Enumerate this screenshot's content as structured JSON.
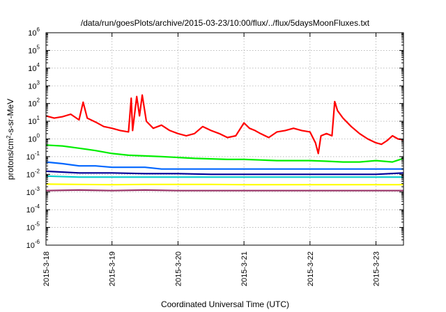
{
  "chart_data": {
    "type": "line",
    "title": "/data/run/goesPlots/archive/2015-03-23/10:00/flux/../flux/5daysMoonFluxes.txt",
    "xlabel": "Coordinated Universal Time (UTC)",
    "ylabel": {
      "before": "protons/cm",
      "sup": "2",
      "after": "-s-sr-MeV"
    },
    "y_scale": "log",
    "ylim": [
      1e-06,
      1000000.0
    ],
    "y_ticks": [
      {
        "base": "10",
        "exp": "-6"
      },
      {
        "base": "10",
        "exp": "-5"
      },
      {
        "base": "10",
        "exp": "-4"
      },
      {
        "base": "10",
        "exp": "-3"
      },
      {
        "base": "10",
        "exp": "-2"
      },
      {
        "base": "10",
        "exp": "-1"
      },
      {
        "base": "10",
        "exp": "0"
      },
      {
        "base": "10",
        "exp": "1"
      },
      {
        "base": "10",
        "exp": "2"
      },
      {
        "base": "10",
        "exp": "3"
      },
      {
        "base": "10",
        "exp": "4"
      },
      {
        "base": "10",
        "exp": "5"
      },
      {
        "base": "10",
        "exp": "6"
      }
    ],
    "x_ticks": [
      "2015-3-18",
      "2015-3-19",
      "2015-3-20",
      "2015-3-21",
      "2015-3-22",
      "2015-3-23"
    ],
    "xlim": [
      "2015-03-18T00:00",
      "2015-03-23T10:00"
    ],
    "grid": true,
    "series": [
      {
        "color": "#ff0000",
        "points": [
          [
            "2015-03-18T00:00",
            20
          ],
          [
            "2015-03-18T03:00",
            15
          ],
          [
            "2015-03-18T06:00",
            18
          ],
          [
            "2015-03-18T09:00",
            25
          ],
          [
            "2015-03-18T12:00",
            12
          ],
          [
            "2015-03-18T13:30",
            120
          ],
          [
            "2015-03-18T15:00",
            15
          ],
          [
            "2015-03-18T18:00",
            9
          ],
          [
            "2015-03-18T21:00",
            5
          ],
          [
            "2015-03-19T00:00",
            4
          ],
          [
            "2015-03-19T03:00",
            3
          ],
          [
            "2015-03-19T06:00",
            2.5
          ],
          [
            "2015-03-19T07:00",
            200
          ],
          [
            "2015-03-19T07:30",
            3
          ],
          [
            "2015-03-19T09:00",
            250
          ],
          [
            "2015-03-19T10:00",
            20
          ],
          [
            "2015-03-19T11:00",
            300
          ],
          [
            "2015-03-19T12:30",
            10
          ],
          [
            "2015-03-19T15:00",
            4
          ],
          [
            "2015-03-19T18:00",
            6
          ],
          [
            "2015-03-19T21:00",
            3
          ],
          [
            "2015-03-20T00:00",
            2
          ],
          [
            "2015-03-20T03:00",
            1.5
          ],
          [
            "2015-03-20T06:00",
            2
          ],
          [
            "2015-03-20T09:00",
            5
          ],
          [
            "2015-03-20T12:00",
            3
          ],
          [
            "2015-03-20T15:00",
            2
          ],
          [
            "2015-03-20T18:00",
            1.2
          ],
          [
            "2015-03-20T21:00",
            1.5
          ],
          [
            "2015-03-21T00:00",
            8
          ],
          [
            "2015-03-21T02:00",
            4
          ],
          [
            "2015-03-21T04:00",
            3
          ],
          [
            "2015-03-21T06:00",
            2
          ],
          [
            "2015-03-21T09:00",
            1.2
          ],
          [
            "2015-03-21T12:00",
            2.5
          ],
          [
            "2015-03-21T15:00",
            3
          ],
          [
            "2015-03-21T18:00",
            4
          ],
          [
            "2015-03-21T21:00",
            3
          ],
          [
            "2015-03-22T00:00",
            2.5
          ],
          [
            "2015-03-22T02:00",
            0.6
          ],
          [
            "2015-03-22T03:00",
            0.15
          ],
          [
            "2015-03-22T04:00",
            1.5
          ],
          [
            "2015-03-22T06:00",
            2
          ],
          [
            "2015-03-22T08:00",
            1.5
          ],
          [
            "2015-03-22T09:00",
            130
          ],
          [
            "2015-03-22T10:00",
            40
          ],
          [
            "2015-03-22T12:00",
            15
          ],
          [
            "2015-03-22T15:00",
            5
          ],
          [
            "2015-03-22T18:00",
            2
          ],
          [
            "2015-03-22T21:00",
            1
          ],
          [
            "2015-03-23T00:00",
            0.6
          ],
          [
            "2015-03-23T02:00",
            0.5
          ],
          [
            "2015-03-23T04:00",
            0.8
          ],
          [
            "2015-03-23T06:00",
            1.5
          ],
          [
            "2015-03-23T08:00",
            1
          ],
          [
            "2015-03-23T10:00",
            0.9
          ]
        ]
      },
      {
        "color": "#00ee00",
        "points": [
          [
            "2015-03-18T00:00",
            0.45
          ],
          [
            "2015-03-18T06:00",
            0.4
          ],
          [
            "2015-03-18T12:00",
            0.3
          ],
          [
            "2015-03-18T18:00",
            0.22
          ],
          [
            "2015-03-19T00:00",
            0.15
          ],
          [
            "2015-03-19T06:00",
            0.12
          ],
          [
            "2015-03-19T12:00",
            0.11
          ],
          [
            "2015-03-19T18:00",
            0.1
          ],
          [
            "2015-03-20T00:00",
            0.09
          ],
          [
            "2015-03-20T06:00",
            0.08
          ],
          [
            "2015-03-20T12:00",
            0.075
          ],
          [
            "2015-03-20T18:00",
            0.07
          ],
          [
            "2015-03-21T00:00",
            0.07
          ],
          [
            "2015-03-21T06:00",
            0.065
          ],
          [
            "2015-03-21T12:00",
            0.06
          ],
          [
            "2015-03-21T18:00",
            0.06
          ],
          [
            "2015-03-22T00:00",
            0.06
          ],
          [
            "2015-03-22T06:00",
            0.055
          ],
          [
            "2015-03-22T12:00",
            0.05
          ],
          [
            "2015-03-22T18:00",
            0.05
          ],
          [
            "2015-03-23T00:00",
            0.06
          ],
          [
            "2015-03-23T06:00",
            0.05
          ],
          [
            "2015-03-23T10:00",
            0.08
          ]
        ]
      },
      {
        "color": "#0066ff",
        "points": [
          [
            "2015-03-18T00:00",
            0.05
          ],
          [
            "2015-03-18T06:00",
            0.04
          ],
          [
            "2015-03-18T12:00",
            0.03
          ],
          [
            "2015-03-18T18:00",
            0.03
          ],
          [
            "2015-03-19T00:00",
            0.025
          ],
          [
            "2015-03-19T06:00",
            0.025
          ],
          [
            "2015-03-19T12:00",
            0.025
          ],
          [
            "2015-03-19T18:00",
            0.02
          ],
          [
            "2015-03-20T00:00",
            0.02
          ],
          [
            "2015-03-20T06:00",
            0.02
          ],
          [
            "2015-03-20T12:00",
            0.02
          ],
          [
            "2015-03-20T18:00",
            0.02
          ],
          [
            "2015-03-21T00:00",
            0.02
          ],
          [
            "2015-03-21T06:00",
            0.02
          ],
          [
            "2015-03-21T12:00",
            0.02
          ],
          [
            "2015-03-21T18:00",
            0.02
          ],
          [
            "2015-03-22T00:00",
            0.02
          ],
          [
            "2015-03-22T06:00",
            0.02
          ],
          [
            "2015-03-22T12:00",
            0.02
          ],
          [
            "2015-03-22T18:00",
            0.02
          ],
          [
            "2015-03-23T00:00",
            0.02
          ],
          [
            "2015-03-23T06:00",
            0.02
          ],
          [
            "2015-03-23T10:00",
            0.02
          ]
        ]
      },
      {
        "color": "#000099",
        "points": [
          [
            "2015-03-18T00:00",
            0.015
          ],
          [
            "2015-03-18T12:00",
            0.012
          ],
          [
            "2015-03-19T00:00",
            0.012
          ],
          [
            "2015-03-19T12:00",
            0.011
          ],
          [
            "2015-03-20T00:00",
            0.011
          ],
          [
            "2015-03-20T12:00",
            0.01
          ],
          [
            "2015-03-21T00:00",
            0.01
          ],
          [
            "2015-03-21T12:00",
            0.01
          ],
          [
            "2015-03-22T00:00",
            0.01
          ],
          [
            "2015-03-22T12:00",
            0.01
          ],
          [
            "2015-03-23T00:00",
            0.01
          ],
          [
            "2015-03-23T10:00",
            0.012
          ]
        ]
      },
      {
        "color": "#00cccc",
        "points": [
          [
            "2015-03-18T00:00",
            0.008
          ],
          [
            "2015-03-18T12:00",
            0.007
          ],
          [
            "2015-03-19T00:00",
            0.007
          ],
          [
            "2015-03-19T12:00",
            0.007
          ],
          [
            "2015-03-20T00:00",
            0.007
          ],
          [
            "2015-03-20T12:00",
            0.007
          ],
          [
            "2015-03-21T00:00",
            0.007
          ],
          [
            "2015-03-21T12:00",
            0.007
          ],
          [
            "2015-03-22T00:00",
            0.007
          ],
          [
            "2015-03-22T12:00",
            0.007
          ],
          [
            "2015-03-23T00:00",
            0.007
          ],
          [
            "2015-03-23T10:00",
            0.007
          ]
        ]
      },
      {
        "color": "#ffff00",
        "points": [
          [
            "2015-03-18T00:00",
            0.0028
          ],
          [
            "2015-03-18T12:00",
            0.0027
          ],
          [
            "2015-03-19T00:00",
            0.0026
          ],
          [
            "2015-03-19T12:00",
            0.0027
          ],
          [
            "2015-03-20T00:00",
            0.0027
          ],
          [
            "2015-03-20T12:00",
            0.0027
          ],
          [
            "2015-03-21T00:00",
            0.0026
          ],
          [
            "2015-03-21T12:00",
            0.0026
          ],
          [
            "2015-03-22T00:00",
            0.0026
          ],
          [
            "2015-03-22T12:00",
            0.0026
          ],
          [
            "2015-03-23T00:00",
            0.0026
          ],
          [
            "2015-03-23T10:00",
            0.0026
          ]
        ]
      },
      {
        "color": "#993366",
        "points": [
          [
            "2015-03-18T00:00",
            0.0012
          ],
          [
            "2015-03-18T12:00",
            0.0013
          ],
          [
            "2015-03-19T00:00",
            0.0012
          ],
          [
            "2015-03-19T12:00",
            0.0013
          ],
          [
            "2015-03-20T00:00",
            0.0012
          ],
          [
            "2015-03-20T12:00",
            0.0012
          ],
          [
            "2015-03-21T00:00",
            0.0012
          ],
          [
            "2015-03-21T12:00",
            0.0012
          ],
          [
            "2015-03-22T00:00",
            0.0012
          ],
          [
            "2015-03-22T12:00",
            0.0012
          ],
          [
            "2015-03-23T00:00",
            0.0012
          ],
          [
            "2015-03-23T10:00",
            0.0012
          ]
        ]
      }
    ]
  }
}
